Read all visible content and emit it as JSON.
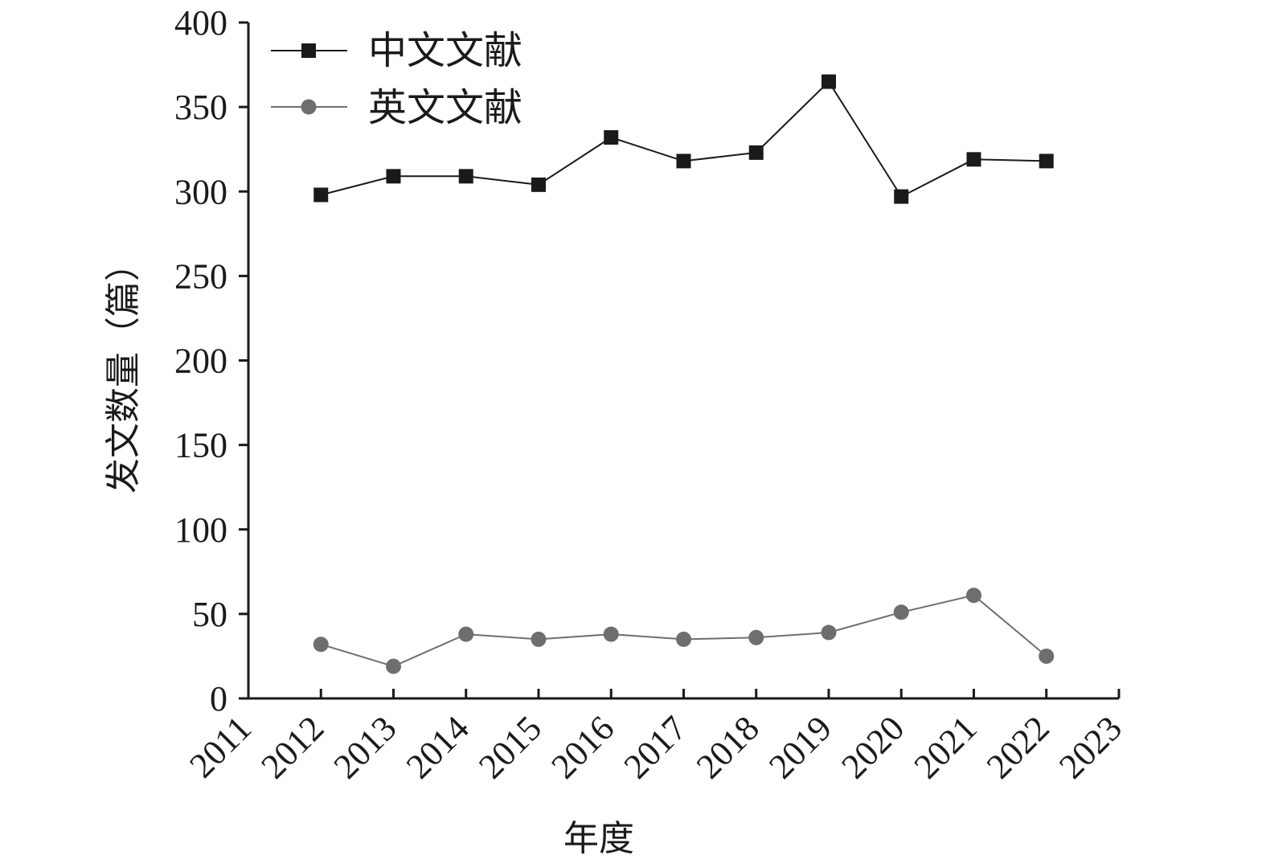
{
  "chart_data": {
    "type": "line",
    "title": "",
    "xlabel": "年度",
    "ylabel": "发文数量（篇）",
    "x_ticks": [
      "2011",
      "2012",
      "2013",
      "2014",
      "2015",
      "2016",
      "2017",
      "2018",
      "2019",
      "2020",
      "2021",
      "2022",
      "2023"
    ],
    "xlim": [
      2011,
      2023
    ],
    "ylim": [
      0,
      400
    ],
    "y_ticks": [
      0,
      50,
      100,
      150,
      200,
      250,
      300,
      350,
      400
    ],
    "grid": false,
    "legend_position": "top-left",
    "x": [
      2012,
      2013,
      2014,
      2015,
      2016,
      2017,
      2018,
      2019,
      2020,
      2021,
      2022
    ],
    "series": [
      {
        "name": "中文文献",
        "marker": "square",
        "color": "#1a1a1a",
        "values": [
          298,
          309,
          309,
          304,
          332,
          318,
          323,
          365,
          297,
          319,
          318
        ]
      },
      {
        "name": "英文文献",
        "marker": "circle",
        "color": "#6e6e6e",
        "values": [
          32,
          19,
          38,
          35,
          38,
          35,
          36,
          39,
          51,
          61,
          25
        ]
      }
    ]
  }
}
